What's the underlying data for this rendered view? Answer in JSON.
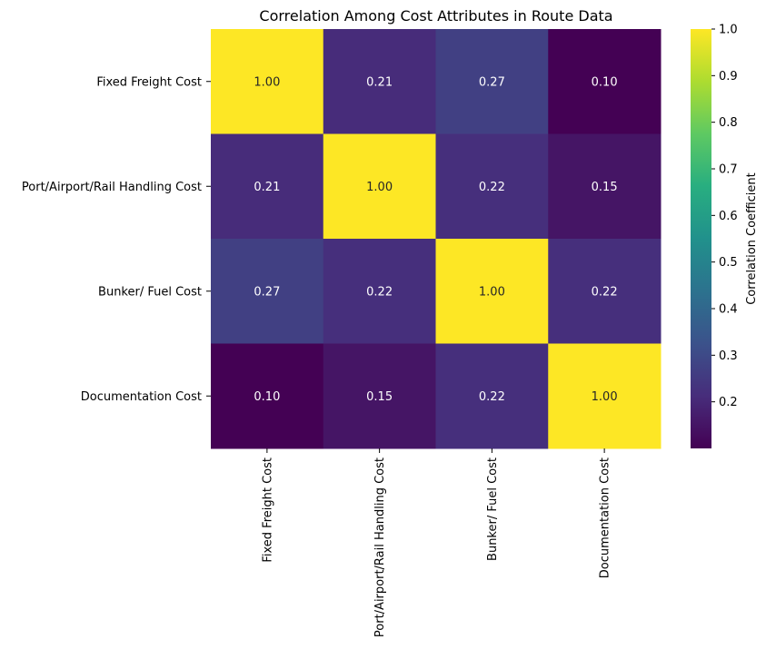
{
  "chart_data": {
    "type": "heatmap",
    "title": "Correlation Among Cost Attributes in Route Data",
    "x_categories": [
      "Fixed Freight Cost",
      "Port/Airport/Rail Handling Cost",
      "Bunker/ Fuel Cost",
      "Documentation Cost"
    ],
    "y_categories": [
      "Fixed Freight Cost",
      "Port/Airport/Rail Handling Cost",
      "Bunker/ Fuel Cost",
      "Documentation Cost"
    ],
    "values": [
      [
        1.0,
        0.21,
        0.27,
        0.1
      ],
      [
        0.21,
        1.0,
        0.22,
        0.15
      ],
      [
        0.27,
        0.22,
        1.0,
        0.22
      ],
      [
        0.1,
        0.15,
        0.22,
        1.0
      ]
    ],
    "value_format": "0.00",
    "colormap": "viridis",
    "colorbar": {
      "label": "Correlation Coefficient",
      "vmin": 0.1,
      "vmax": 1.0,
      "ticks": [
        0.2,
        0.3,
        0.4,
        0.5,
        0.6,
        0.7,
        0.8,
        0.9,
        1.0
      ],
      "tick_labels": [
        "0.2",
        "0.3",
        "0.4",
        "0.5",
        "0.6",
        "0.7",
        "0.8",
        "0.9",
        "1.0"
      ]
    },
    "grid": false
  }
}
